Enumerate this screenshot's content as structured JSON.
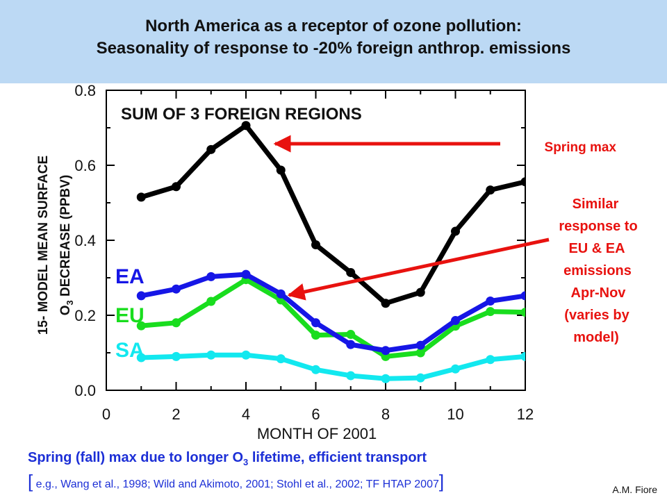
{
  "header": {
    "title_line1": "North America as a receptor of ozone pollution:",
    "title_line2": "Seasonality of response to -20% foreign anthrop. emissions"
  },
  "chart_data": {
    "type": "line",
    "title": "SUM OF 3 FOREIGN REGIONS",
    "xlabel": "MONTH OF 2001",
    "ylabel_line1": "15- MODEL MEAN SURFACE",
    "ylabel_line2_pre": "O",
    "ylabel_line2_sub": "3",
    "ylabel_line2_post": " DECREASE (PPBV)",
    "xlim": [
      0,
      12
    ],
    "ylim": [
      0.0,
      0.8
    ],
    "xticks": [
      "0",
      "2",
      "4",
      "6",
      "8",
      "10",
      "12"
    ],
    "yticks": [
      "0.0",
      "0.2",
      "0.4",
      "0.6",
      "0.8"
    ],
    "x": [
      1,
      2,
      3,
      4,
      5,
      6,
      7,
      8,
      9,
      10,
      11,
      12
    ],
    "series": [
      {
        "label": "",
        "color": "#000000",
        "values": [
          0.515,
          0.543,
          0.642,
          0.706,
          0.587,
          0.388,
          0.314,
          0.232,
          0.261,
          0.424,
          0.534,
          0.556
        ]
      },
      {
        "label": "EA",
        "color": "#1616e6",
        "values": [
          0.252,
          0.27,
          0.303,
          0.309,
          0.257,
          0.18,
          0.122,
          0.106,
          0.12,
          0.186,
          0.238,
          0.252
        ]
      },
      {
        "label": "EU",
        "color": "#19dd1e",
        "values": [
          0.172,
          0.18,
          0.237,
          0.295,
          0.241,
          0.147,
          0.149,
          0.09,
          0.1,
          0.171,
          0.21,
          0.208
        ]
      },
      {
        "label": "SA",
        "color": "#12e8ef",
        "values": [
          0.087,
          0.09,
          0.094,
          0.094,
          0.084,
          0.055,
          0.039,
          0.031,
          0.033,
          0.057,
          0.082,
          0.09
        ]
      }
    ],
    "annotations": {
      "spring_max": "Spring max",
      "similar_lines": [
        "Similar",
        "response to",
        "EU & EA",
        "emissions",
        "Apr-Nov",
        "(varies by",
        "model)"
      ]
    }
  },
  "notes": {
    "main_pre": "Spring (fall) max due to longer O",
    "main_sub": "3",
    "main_post": " lifetime, efficient transport",
    "cite_open": "[",
    "cite_text": " e.g., Wang et al., 1998; Wild and Akimoto, 2001; Stohl et al., 2002; TF HTAP 2007",
    "cite_close": "]"
  },
  "credit": "A.M. Fiore",
  "colors": {
    "title_bg": "#bcd9f4",
    "annotation_red": "#e8120f",
    "note_blue": "#1c2fd6"
  }
}
